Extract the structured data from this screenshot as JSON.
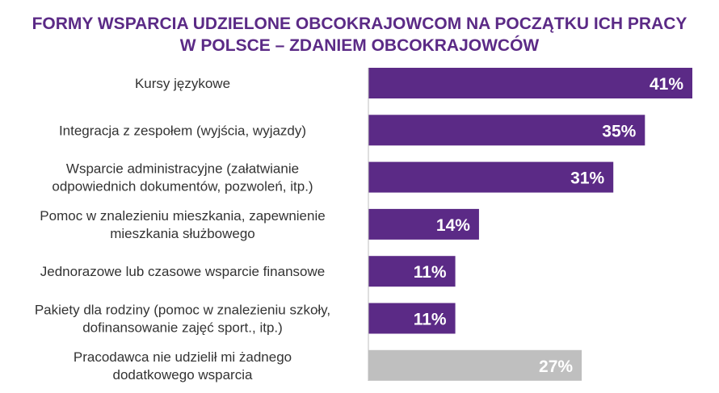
{
  "title": {
    "line1": "FORMY WSPARCIA UDZIELONE OBCOKRAJOWCOM NA POCZĄTKU ICH PRACY",
    "line2": "W POLSCE – ZDANIEM OBCOKRAJOWCÓW"
  },
  "colors": {
    "title": "#5b2a86",
    "bar_primary": "#5b2a86",
    "bar_other": "#bfbfbf",
    "axis": "#bfbfbf",
    "label_text": "#333333",
    "value_text": "#ffffff"
  },
  "chart_data": {
    "type": "bar",
    "orientation": "horizontal",
    "unit": "%",
    "xlim": [
      0,
      41
    ],
    "categories": [
      [
        "Kursy językowe"
      ],
      [
        "Integracja z zespołem (wyjścia, wyjazdy)"
      ],
      [
        "Wsparcie administracyjne (załatwianie",
        "odpowiednich dokumentów, pozwoleń, itp.)"
      ],
      [
        "Pomoc w znalezieniu mieszkania, zapewnienie",
        "mieszkania służbowego"
      ],
      [
        "Jednorazowe lub czasowe wsparcie finansowe"
      ],
      [
        "Pakiety dla rodziny (pomoc w znalezieniu szkoły,",
        "dofinansowanie zajęć sport., itp.)"
      ],
      [
        "Pracodawca nie udzielił mi żadnego",
        "dodatkowego wsparcia"
      ]
    ],
    "values": [
      41,
      35,
      31,
      14,
      11,
      11,
      27
    ],
    "value_labels": [
      "41%",
      "35%",
      "31%",
      "14%",
      "11%",
      "11%",
      "27%"
    ],
    "bar_color_keys": [
      "bar_primary",
      "bar_primary",
      "bar_primary",
      "bar_primary",
      "bar_primary",
      "bar_primary",
      "bar_other"
    ]
  }
}
